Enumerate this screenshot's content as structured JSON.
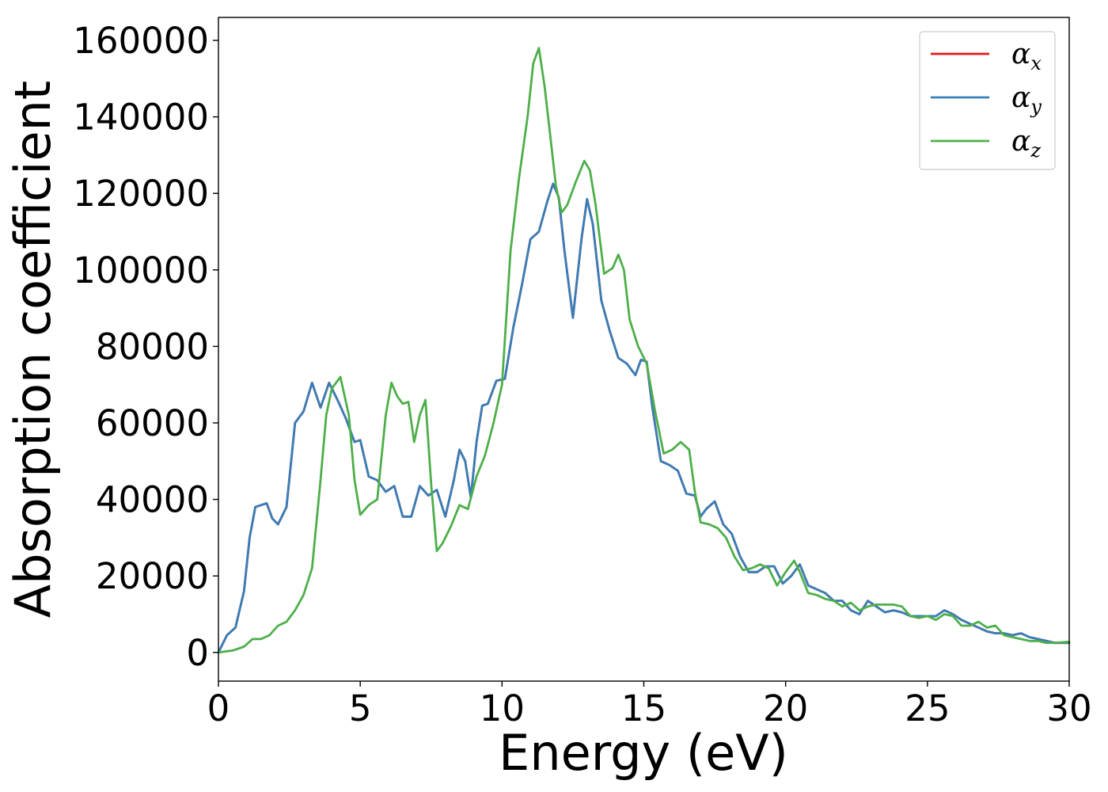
{
  "chart_data": {
    "type": "line",
    "xlabel": "Energy (eV)",
    "ylabel": "Absorption coefficient",
    "xlim": [
      0,
      30
    ],
    "ylim": [
      -7500,
      166000
    ],
    "xticks": [
      "0",
      "5",
      "10",
      "15",
      "20",
      "25",
      "30"
    ],
    "yticks": [
      "0",
      "20000",
      "40000",
      "60000",
      "80000",
      "100000",
      "120000",
      "140000",
      "160000"
    ],
    "grid": false,
    "legend": {
      "placement": "top-right",
      "entries": [
        {
          "base": "α",
          "sub": "x",
          "color": "#e41a1c"
        },
        {
          "base": "α",
          "sub": "y",
          "color": "#377eb8"
        },
        {
          "base": "α",
          "sub": "z",
          "color": "#4daf4a"
        }
      ]
    },
    "series": [
      {
        "name": "αx",
        "color": "#e41a1c",
        "x": [
          0,
          0.3,
          0.6,
          0.9,
          1.1,
          1.3,
          1.5,
          1.7,
          1.9,
          2.1,
          2.4,
          2.7,
          3.0,
          3.3,
          3.6,
          3.9,
          4.2,
          4.5,
          4.8,
          5.0,
          5.3,
          5.6,
          5.9,
          6.2,
          6.5,
          6.8,
          7.1,
          7.4,
          7.7,
          8.0,
          8.3,
          8.5,
          8.7,
          8.9,
          9.1,
          9.3,
          9.5,
          9.8,
          10.1,
          10.4,
          10.7,
          11.0,
          11.3,
          11.6,
          11.8,
          12.0,
          12.2,
          12.5,
          12.8,
          13.0,
          13.2,
          13.5,
          13.8,
          14.1,
          14.4,
          14.7,
          14.9,
          15.1,
          15.3,
          15.6,
          15.9,
          16.2,
          16.5,
          16.8,
          17.0,
          17.2,
          17.5,
          17.8,
          18.1,
          18.4,
          18.7,
          19.0,
          19.3,
          19.6,
          19.9,
          20.2,
          20.5,
          20.8,
          21.1,
          21.4,
          21.7,
          22.0,
          22.3,
          22.6,
          22.9,
          23.2,
          23.5,
          23.8,
          24.1,
          24.4,
          24.7,
          25.0,
          25.3,
          25.6,
          25.9,
          26.2,
          26.5,
          26.8,
          27.1,
          27.4,
          27.7,
          28.0,
          28.3,
          28.6,
          28.9,
          29.2,
          29.5,
          30.0
        ],
        "y": [
          0,
          4500,
          6500,
          16000,
          30000,
          38000,
          38500,
          39000,
          35000,
          33500,
          38000,
          60000,
          63000,
          70500,
          64000,
          70500,
          66000,
          61000,
          55000,
          55500,
          46000,
          45000,
          42000,
          43500,
          35500,
          35500,
          43500,
          41000,
          42500,
          35500,
          45000,
          53000,
          50000,
          40500,
          55000,
          64500,
          65000,
          71000,
          71500,
          85000,
          96000,
          108000,
          110000,
          118000,
          122500,
          119000,
          105000,
          87500,
          108000,
          118500,
          112000,
          92000,
          84000,
          77000,
          75500,
          72500,
          76500,
          76000,
          64000,
          50000,
          49000,
          47500,
          41500,
          41000,
          35500,
          37500,
          39500,
          33500,
          31000,
          25000,
          21000,
          21000,
          22500,
          22500,
          18000,
          20000,
          23000,
          17500,
          16500,
          15500,
          13500,
          13500,
          11000,
          10000,
          13500,
          12000,
          10500,
          11000,
          10500,
          9500,
          9500,
          9500,
          9500,
          11000,
          10000,
          8500,
          7500,
          6500,
          5500,
          5000,
          5000,
          4500,
          5000,
          4000,
          3500,
          3000,
          2500,
          2500
        ]
      },
      {
        "name": "αy",
        "color": "#377eb8",
        "x": [
          0,
          0.3,
          0.6,
          0.9,
          1.1,
          1.3,
          1.5,
          1.7,
          1.9,
          2.1,
          2.4,
          2.7,
          3.0,
          3.3,
          3.6,
          3.9,
          4.2,
          4.5,
          4.8,
          5.0,
          5.3,
          5.6,
          5.9,
          6.2,
          6.5,
          6.8,
          7.1,
          7.4,
          7.7,
          8.0,
          8.3,
          8.5,
          8.7,
          8.9,
          9.1,
          9.3,
          9.5,
          9.8,
          10.1,
          10.4,
          10.7,
          11.0,
          11.3,
          11.6,
          11.8,
          12.0,
          12.2,
          12.5,
          12.8,
          13.0,
          13.2,
          13.5,
          13.8,
          14.1,
          14.4,
          14.7,
          14.9,
          15.1,
          15.3,
          15.6,
          15.9,
          16.2,
          16.5,
          16.8,
          17.0,
          17.2,
          17.5,
          17.8,
          18.1,
          18.4,
          18.7,
          19.0,
          19.3,
          19.6,
          19.9,
          20.2,
          20.5,
          20.8,
          21.1,
          21.4,
          21.7,
          22.0,
          22.3,
          22.6,
          22.9,
          23.2,
          23.5,
          23.8,
          24.1,
          24.4,
          24.7,
          25.0,
          25.3,
          25.6,
          25.9,
          26.2,
          26.5,
          26.8,
          27.1,
          27.4,
          27.7,
          28.0,
          28.3,
          28.6,
          28.9,
          29.2,
          29.5,
          30.0
        ],
        "y": [
          0,
          4500,
          6500,
          16000,
          30000,
          38000,
          38500,
          39000,
          35000,
          33500,
          38000,
          60000,
          63000,
          70500,
          64000,
          70500,
          66000,
          61000,
          55000,
          55500,
          46000,
          45000,
          42000,
          43500,
          35500,
          35500,
          43500,
          41000,
          42500,
          35500,
          45000,
          53000,
          50000,
          40500,
          55000,
          64500,
          65000,
          71000,
          71500,
          85000,
          96000,
          108000,
          110000,
          118000,
          122500,
          119000,
          105000,
          87500,
          108000,
          118500,
          112000,
          92000,
          84000,
          77000,
          75500,
          72500,
          76500,
          76000,
          64000,
          50000,
          49000,
          47500,
          41500,
          41000,
          35500,
          37500,
          39500,
          33500,
          31000,
          25000,
          21000,
          21000,
          22500,
          22500,
          18000,
          20000,
          23000,
          17500,
          16500,
          15500,
          13500,
          13500,
          11000,
          10000,
          13500,
          12000,
          10500,
          11000,
          10500,
          9500,
          9500,
          9500,
          9500,
          11000,
          10000,
          8500,
          7500,
          6500,
          5500,
          5000,
          5000,
          4500,
          5000,
          4000,
          3500,
          3000,
          2500,
          2500
        ]
      },
      {
        "name": "αz",
        "color": "#4daf4a",
        "x": [
          0,
          0.5,
          0.9,
          1.2,
          1.5,
          1.8,
          2.1,
          2.4,
          2.7,
          3.0,
          3.3,
          3.6,
          3.8,
          4.0,
          4.3,
          4.6,
          4.8,
          5.0,
          5.3,
          5.6,
          5.9,
          6.1,
          6.3,
          6.5,
          6.7,
          6.9,
          7.1,
          7.3,
          7.5,
          7.7,
          7.9,
          8.2,
          8.5,
          8.8,
          9.1,
          9.4,
          9.7,
          10.0,
          10.3,
          10.6,
          10.9,
          11.1,
          11.3,
          11.5,
          11.7,
          11.9,
          12.1,
          12.3,
          12.6,
          12.9,
          13.1,
          13.3,
          13.6,
          13.9,
          14.1,
          14.3,
          14.5,
          14.8,
          15.1,
          15.4,
          15.7,
          16.0,
          16.3,
          16.6,
          16.8,
          17.0,
          17.3,
          17.6,
          17.9,
          18.2,
          18.5,
          18.8,
          19.1,
          19.4,
          19.7,
          20.0,
          20.3,
          20.5,
          20.8,
          21.1,
          21.4,
          21.7,
          22.0,
          22.3,
          22.6,
          22.9,
          23.2,
          23.5,
          23.8,
          24.1,
          24.4,
          24.7,
          25.0,
          25.3,
          25.6,
          25.9,
          26.2,
          26.5,
          26.8,
          27.1,
          27.4,
          27.7,
          28.0,
          28.3,
          28.6,
          28.9,
          29.2,
          29.5,
          30.0
        ],
        "y": [
          0,
          500,
          1500,
          3500,
          3500,
          4500,
          7000,
          8000,
          11000,
          15000,
          22000,
          45000,
          62000,
          69000,
          72000,
          62000,
          45000,
          36000,
          38500,
          40000,
          62000,
          70500,
          67000,
          65000,
          65500,
          55000,
          62000,
          66000,
          44000,
          26500,
          28500,
          33000,
          38500,
          37500,
          46000,
          51500,
          60000,
          70000,
          105000,
          124000,
          140000,
          154000,
          158000,
          148000,
          135000,
          122000,
          115000,
          117000,
          123000,
          128500,
          126000,
          117000,
          99000,
          100500,
          104000,
          100000,
          87000,
          80000,
          75500,
          63000,
          52000,
          53000,
          55000,
          53000,
          42000,
          34000,
          33500,
          32500,
          30000,
          25000,
          21500,
          22000,
          23000,
          22000,
          17500,
          21000,
          24000,
          21000,
          15500,
          15000,
          14000,
          13500,
          12000,
          13000,
          11000,
          12000,
          12500,
          12500,
          12500,
          12000,
          9500,
          9000,
          9500,
          8500,
          10000,
          9500,
          7000,
          7000,
          8000,
          6500,
          7000,
          4500,
          4000,
          3500,
          3000,
          3000,
          2500,
          2500,
          2800
        ]
      }
    ]
  }
}
